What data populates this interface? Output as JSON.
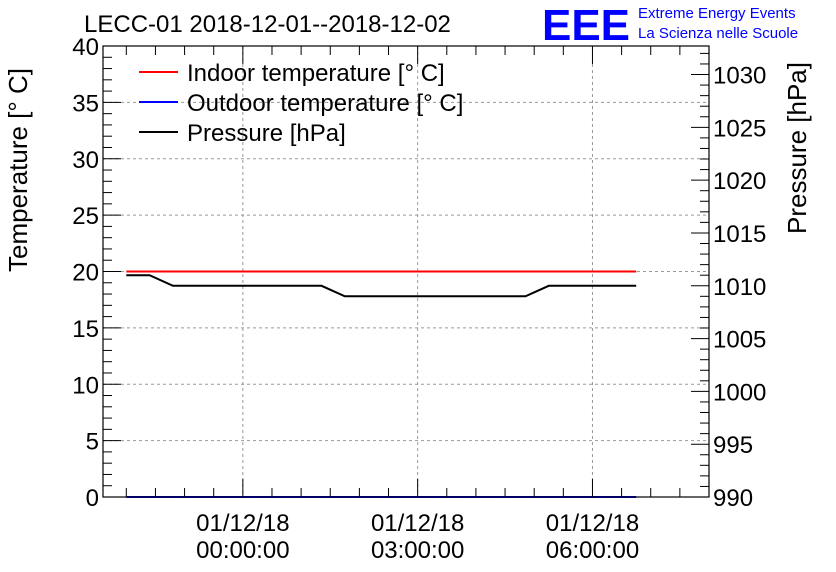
{
  "title": "LECC-01 2018-12-01--2018-12-02",
  "logo": {
    "letters": "EEE",
    "line1": "Extreme Energy Events",
    "line2": "La Scienza nelle Scuole",
    "color": "#0000ff"
  },
  "chart_data": {
    "type": "line",
    "title": "LECC-01 2018-12-01--2018-12-02",
    "ylabel_left": "Temperature [° C]",
    "ylabel_right": "Pressure [hPa]",
    "x_unit": "hours relative to 01/12/18 00:00:00",
    "xlim": [
      -2.4,
      8.0
    ],
    "ylim_left": [
      0,
      40
    ],
    "ylim_right": [
      990,
      1032.7
    ],
    "x_ticks": [
      {
        "x": 0,
        "date": "01/12/18",
        "time": "00:00:00"
      },
      {
        "x": 3,
        "date": "01/12/18",
        "time": "03:00:00"
      },
      {
        "x": 6,
        "date": "01/12/18",
        "time": "06:00:00"
      }
    ],
    "y_ticks_left": [
      0,
      5,
      10,
      15,
      20,
      25,
      30,
      35,
      40
    ],
    "y_ticks_right": [
      990,
      995,
      1000,
      1005,
      1010,
      1015,
      1020,
      1025,
      1030
    ],
    "grid": true,
    "legend_position": "top-left",
    "series": [
      {
        "name": "Indoor temperature [° C]",
        "axis": "left",
        "color": "#ff0000",
        "x": [
          -2.0,
          6.75
        ],
        "y": [
          20,
          20
        ]
      },
      {
        "name": "Outdoor temperature [° C]",
        "axis": "left",
        "color": "#0000ff",
        "x": [
          -2.0,
          6.75
        ],
        "y": [
          0,
          0
        ]
      },
      {
        "name": "Pressure [hPa]",
        "axis": "right",
        "color": "#000000",
        "x": [
          -2.0,
          -1.6,
          -1.2,
          1.35,
          1.75,
          4.85,
          5.25,
          6.75
        ],
        "y": [
          1011,
          1011,
          1010,
          1010,
          1009,
          1009,
          1010,
          1010
        ]
      }
    ]
  }
}
